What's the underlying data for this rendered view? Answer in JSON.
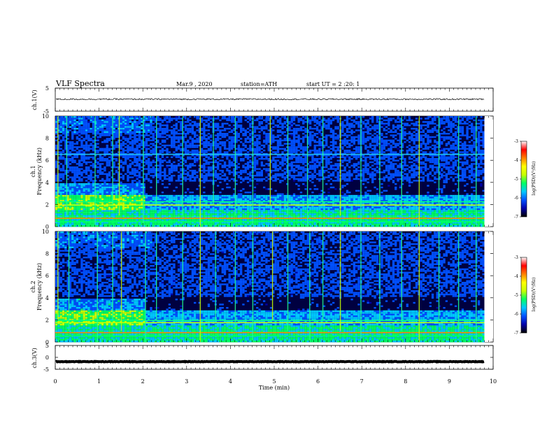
{
  "header": {
    "title": "VLF Spectra",
    "date": "Mar.9 , 2020",
    "station": "station=ATH",
    "start_ut": "start UT = 2 :20: 1"
  },
  "colors": {
    "background": "#000040",
    "colormap": [
      "#000000",
      "#0000a8",
      "#0050ff",
      "#00c8ff",
      "#00ff64",
      "#c8ff00",
      "#ffff00",
      "#ff8000",
      "#ff0000",
      "#ffffff"
    ]
  },
  "chart_data": [
    {
      "type": "line",
      "panel": "ch1-waveform",
      "ylabel": "ch.1(V)",
      "ylim": [
        -5,
        5
      ],
      "yticks": [
        "5",
        "-5"
      ],
      "xlim": [
        0,
        10
      ],
      "series": [
        {
          "values_description_mean": 0.2,
          "amplitude": 0.3,
          "end_time": 9.8
        }
      ]
    },
    {
      "type": "heatmap",
      "panel": "ch1-spectrogram",
      "ylabel_lines": [
        "ch.1",
        "Frequency (kHz)"
      ],
      "ylim": [
        0,
        10
      ],
      "yticks": [
        "0",
        "2",
        "4",
        "6",
        "8",
        "10"
      ],
      "xlim": [
        0,
        10
      ],
      "end_time": 9.8,
      "colorbar": {
        "label": "log(PSD)(V²/Hz)",
        "range": [
          -7,
          -3
        ],
        "ticks": [
          "-3",
          "-4",
          "-5",
          "-6",
          "-7"
        ]
      },
      "features": {
        "strong_bands_khz": [
          2.3,
          2.0,
          0.8,
          0.5
        ],
        "band_6_5_khz": true,
        "enhanced_region": {
          "t_end": 2.05,
          "f_max": 4.0
        },
        "spikes_min": [
          0.05,
          0.25,
          0.9,
          1.3,
          1.45,
          2.0,
          2.3,
          2.9,
          3.3,
          3.6,
          4.1,
          4.5,
          4.9,
          5.3,
          5.75,
          6.1,
          6.5,
          6.97,
          7.4,
          7.9,
          8.3,
          8.75,
          9.2,
          9.6
        ]
      }
    },
    {
      "type": "heatmap",
      "panel": "ch2-spectrogram",
      "ylabel_lines": [
        "ch.2",
        "Frequency (kHz)"
      ],
      "ylim": [
        0,
        10
      ],
      "yticks": [
        "0",
        "2",
        "4",
        "6",
        "8",
        "10"
      ],
      "xlim": [
        0,
        10
      ],
      "end_time": 9.8,
      "colorbar": {
        "label": "log(PSD)(V²/Hz)",
        "range": [
          -7,
          -3
        ],
        "ticks": [
          "-3",
          "-4",
          "-5",
          "-6",
          "-7"
        ]
      },
      "features": {
        "strong_bands_khz": [
          2.0,
          1.8,
          0.9,
          0.6
        ],
        "enhanced_region": {
          "t_end": 2.05,
          "f_max": 4.0
        },
        "spikes_min": [
          0.05,
          0.3,
          0.95,
          1.3,
          1.5,
          2.05,
          2.3,
          2.9,
          3.3,
          3.65,
          4.1,
          4.5,
          4.95,
          5.3,
          5.8,
          6.1,
          6.5,
          6.97,
          7.4,
          7.9,
          8.3,
          8.75,
          9.2,
          9.6
        ]
      }
    },
    {
      "type": "line",
      "panel": "ch3-waveform",
      "ylabel": "ch.3(V)",
      "ylim": [
        -5,
        5
      ],
      "yticks": [
        "5",
        "0",
        "-5"
      ],
      "xlim": [
        0,
        10
      ],
      "xlabel": "Time (min)",
      "xticks": [
        "0",
        "1",
        "2",
        "3",
        "4",
        "5",
        "6",
        "7",
        "8",
        "9",
        "10"
      ],
      "series": [
        {
          "values_description_mean": -1.8,
          "amplitude": 0.35,
          "end_time": 9.8
        }
      ]
    }
  ]
}
